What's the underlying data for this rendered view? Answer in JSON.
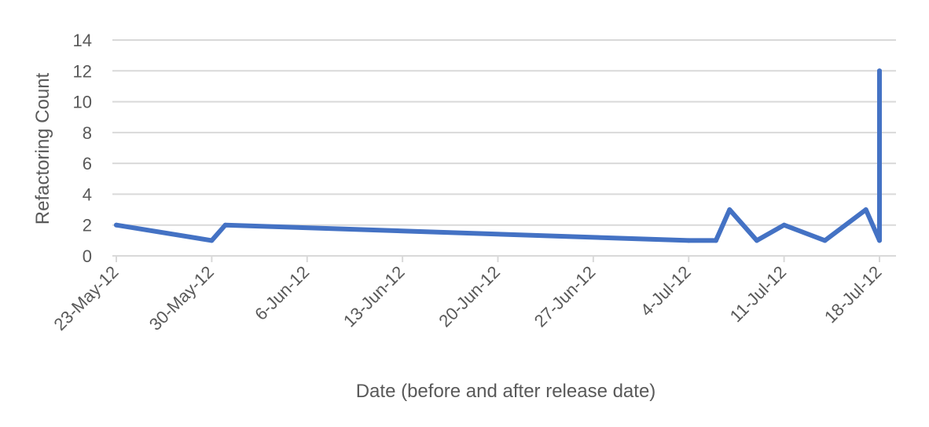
{
  "chart_data": {
    "type": "line",
    "xlabel": "Date (before and after release date)",
    "ylabel": "Refactoring Count",
    "ylim": [
      0,
      14
    ],
    "y_ticks": [
      0,
      2,
      4,
      6,
      8,
      10,
      12,
      14
    ],
    "xlim": [
      "2012-05-23",
      "2012-07-18"
    ],
    "x_ticks": [
      {
        "date": "2012-05-23",
        "label": "23-May-12"
      },
      {
        "date": "2012-05-30",
        "label": "30-May-12"
      },
      {
        "date": "2012-06-06",
        "label": "6-Jun-12"
      },
      {
        "date": "2012-06-13",
        "label": "13-Jun-12"
      },
      {
        "date": "2012-06-20",
        "label": "20-Jun-12"
      },
      {
        "date": "2012-06-27",
        "label": "27-Jun-12"
      },
      {
        "date": "2012-07-04",
        "label": "4-Jul-12"
      },
      {
        "date": "2012-07-11",
        "label": "11-Jul-12"
      },
      {
        "date": "2012-07-18",
        "label": "18-Jul-12"
      }
    ],
    "grid": true,
    "series": [
      {
        "color": "#4472c4",
        "points": [
          {
            "x": "2012-05-23",
            "y": 2
          },
          {
            "x": "2012-05-30",
            "y": 1
          },
          {
            "x": "2012-05-31",
            "y": 2
          },
          {
            "x": "2012-07-04",
            "y": 1
          },
          {
            "x": "2012-07-06",
            "y": 1
          },
          {
            "x": "2012-07-07",
            "y": 3
          },
          {
            "x": "2012-07-09",
            "y": 1
          },
          {
            "x": "2012-07-11",
            "y": 2
          },
          {
            "x": "2012-07-14",
            "y": 1
          },
          {
            "x": "2012-07-17",
            "y": 3
          },
          {
            "x": "2012-07-18",
            "y": 1
          },
          {
            "x": "2012-07-18",
            "y": 12
          }
        ]
      }
    ]
  }
}
